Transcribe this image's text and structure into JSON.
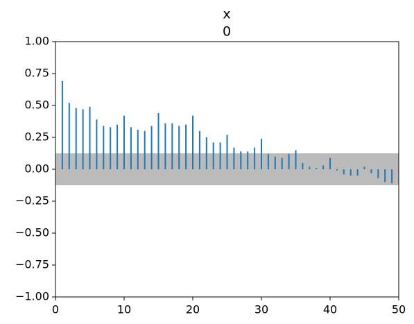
{
  "chart_data": {
    "type": "stem",
    "title": "x",
    "subtitle": "0",
    "x": [
      1,
      2,
      3,
      4,
      5,
      6,
      7,
      8,
      9,
      10,
      11,
      12,
      13,
      14,
      15,
      16,
      17,
      18,
      19,
      20,
      21,
      22,
      23,
      24,
      25,
      26,
      27,
      28,
      29,
      30,
      31,
      32,
      33,
      34,
      35,
      36,
      37,
      38,
      39,
      40,
      41,
      42,
      43,
      44,
      45,
      46,
      47,
      48,
      49
    ],
    "values": [
      0.69,
      0.52,
      0.48,
      0.47,
      0.49,
      0.39,
      0.34,
      0.33,
      0.35,
      0.42,
      0.33,
      0.31,
      0.3,
      0.34,
      0.44,
      0.36,
      0.36,
      0.34,
      0.35,
      0.42,
      0.3,
      0.25,
      0.21,
      0.21,
      0.27,
      0.17,
      0.14,
      0.14,
      0.17,
      0.24,
      0.12,
      0.1,
      0.09,
      0.12,
      0.15,
      0.05,
      0.02,
      0.01,
      0.03,
      0.09,
      -0.01,
      -0.04,
      -0.05,
      -0.05,
      0.02,
      -0.03,
      -0.07,
      -0.1,
      -0.11
    ],
    "color": "#1f77b4",
    "band": [
      -0.125,
      0.125
    ],
    "band_color": "#bbbbbb",
    "xlim": [
      0,
      50
    ],
    "xticks": [
      0,
      10,
      20,
      30,
      40,
      50
    ],
    "ylim": [
      -1,
      1
    ],
    "yticks": [
      {
        "value": -1,
        "label": "−1.00"
      },
      {
        "value": -0.75,
        "label": "−0.75"
      },
      {
        "value": -0.5,
        "label": "−0.50"
      },
      {
        "value": -0.25,
        "label": "−0.25"
      },
      {
        "value": 0,
        "label": "0.00"
      },
      {
        "value": 0.25,
        "label": "0.25"
      },
      {
        "value": 0.5,
        "label": "0.50"
      },
      {
        "value": 0.75,
        "label": "0.75"
      },
      {
        "value": 1,
        "label": "1.00"
      }
    ]
  }
}
